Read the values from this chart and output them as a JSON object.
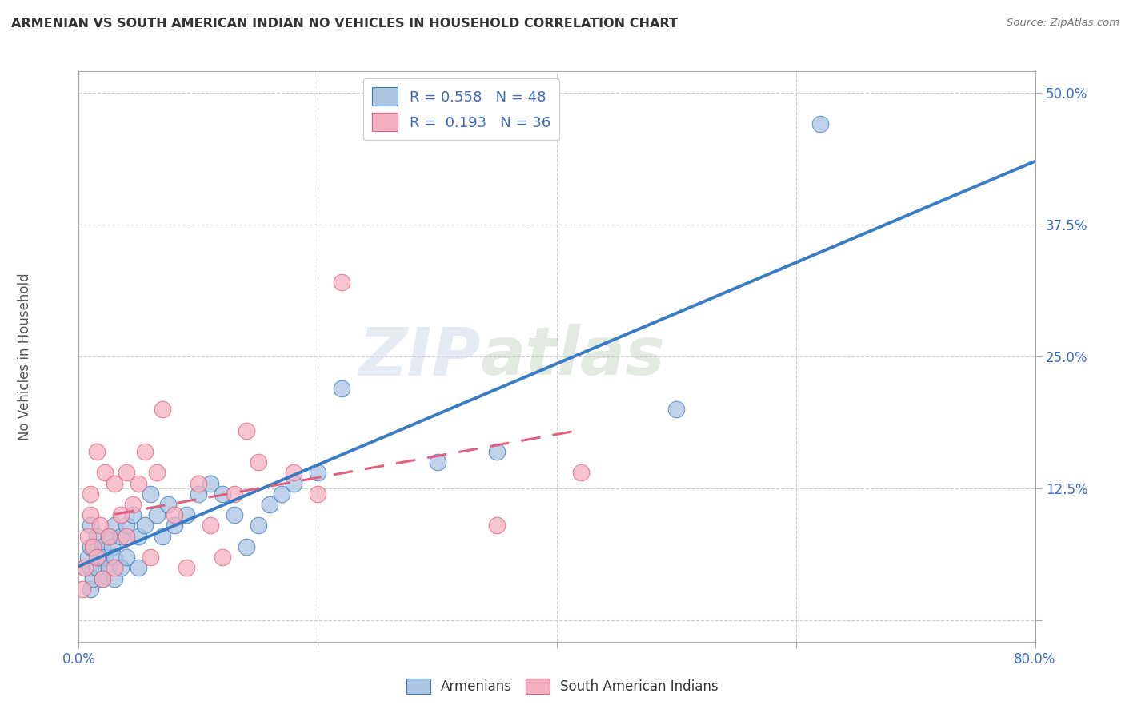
{
  "title": "ARMENIAN VS SOUTH AMERICAN INDIAN NO VEHICLES IN HOUSEHOLD CORRELATION CHART",
  "source": "Source: ZipAtlas.com",
  "ylabel": "No Vehicles in Household",
  "xlim": [
    0.0,
    0.8
  ],
  "ylim": [
    -0.02,
    0.52
  ],
  "xticks": [
    0.0,
    0.2,
    0.4,
    0.6,
    0.8
  ],
  "xticklabels": [
    "0.0%",
    "",
    "",
    "",
    "80.0%"
  ],
  "yticks": [
    0.0,
    0.125,
    0.25,
    0.375,
    0.5
  ],
  "yticklabels": [
    "",
    "12.5%",
    "25.0%",
    "37.5%",
    "50.0%"
  ],
  "grid_color": "#cccccc",
  "background_color": "#ffffff",
  "watermark_zip": "ZIP",
  "watermark_atlas": "atlas",
  "legend_R_armenians": "0.558",
  "legend_N_armenians": "48",
  "legend_R_south_american": "0.193",
  "legend_N_south_american": "36",
  "color_armenians": "#aac4e2",
  "color_south_american": "#f5b0c0",
  "trendline_armenians_color": "#3a7cc4",
  "trendline_south_american_color": "#e06080",
  "armenians_x": [
    0.005,
    0.008,
    0.01,
    0.01,
    0.01,
    0.01,
    0.012,
    0.015,
    0.015,
    0.018,
    0.02,
    0.02,
    0.022,
    0.025,
    0.025,
    0.028,
    0.03,
    0.03,
    0.03,
    0.035,
    0.035,
    0.04,
    0.04,
    0.045,
    0.05,
    0.05,
    0.055,
    0.06,
    0.065,
    0.07,
    0.075,
    0.08,
    0.09,
    0.1,
    0.11,
    0.12,
    0.13,
    0.14,
    0.15,
    0.16,
    0.17,
    0.18,
    0.2,
    0.22,
    0.3,
    0.35,
    0.5,
    0.62
  ],
  "armenians_y": [
    0.05,
    0.06,
    0.03,
    0.05,
    0.07,
    0.09,
    0.04,
    0.05,
    0.08,
    0.06,
    0.04,
    0.07,
    0.06,
    0.05,
    0.08,
    0.07,
    0.04,
    0.06,
    0.09,
    0.05,
    0.08,
    0.06,
    0.09,
    0.1,
    0.05,
    0.08,
    0.09,
    0.12,
    0.1,
    0.08,
    0.11,
    0.09,
    0.1,
    0.12,
    0.13,
    0.12,
    0.1,
    0.07,
    0.09,
    0.11,
    0.12,
    0.13,
    0.14,
    0.22,
    0.15,
    0.16,
    0.2,
    0.47
  ],
  "south_american_x": [
    0.003,
    0.005,
    0.008,
    0.01,
    0.01,
    0.012,
    0.015,
    0.015,
    0.018,
    0.02,
    0.022,
    0.025,
    0.03,
    0.03,
    0.035,
    0.04,
    0.04,
    0.045,
    0.05,
    0.055,
    0.06,
    0.065,
    0.07,
    0.08,
    0.09,
    0.1,
    0.11,
    0.12,
    0.13,
    0.14,
    0.15,
    0.18,
    0.2,
    0.22,
    0.35,
    0.42
  ],
  "south_american_y": [
    0.03,
    0.05,
    0.08,
    0.1,
    0.12,
    0.07,
    0.06,
    0.16,
    0.09,
    0.04,
    0.14,
    0.08,
    0.05,
    0.13,
    0.1,
    0.08,
    0.14,
    0.11,
    0.13,
    0.16,
    0.06,
    0.14,
    0.2,
    0.1,
    0.05,
    0.13,
    0.09,
    0.06,
    0.12,
    0.18,
    0.15,
    0.14,
    0.12,
    0.32,
    0.09,
    0.14
  ]
}
